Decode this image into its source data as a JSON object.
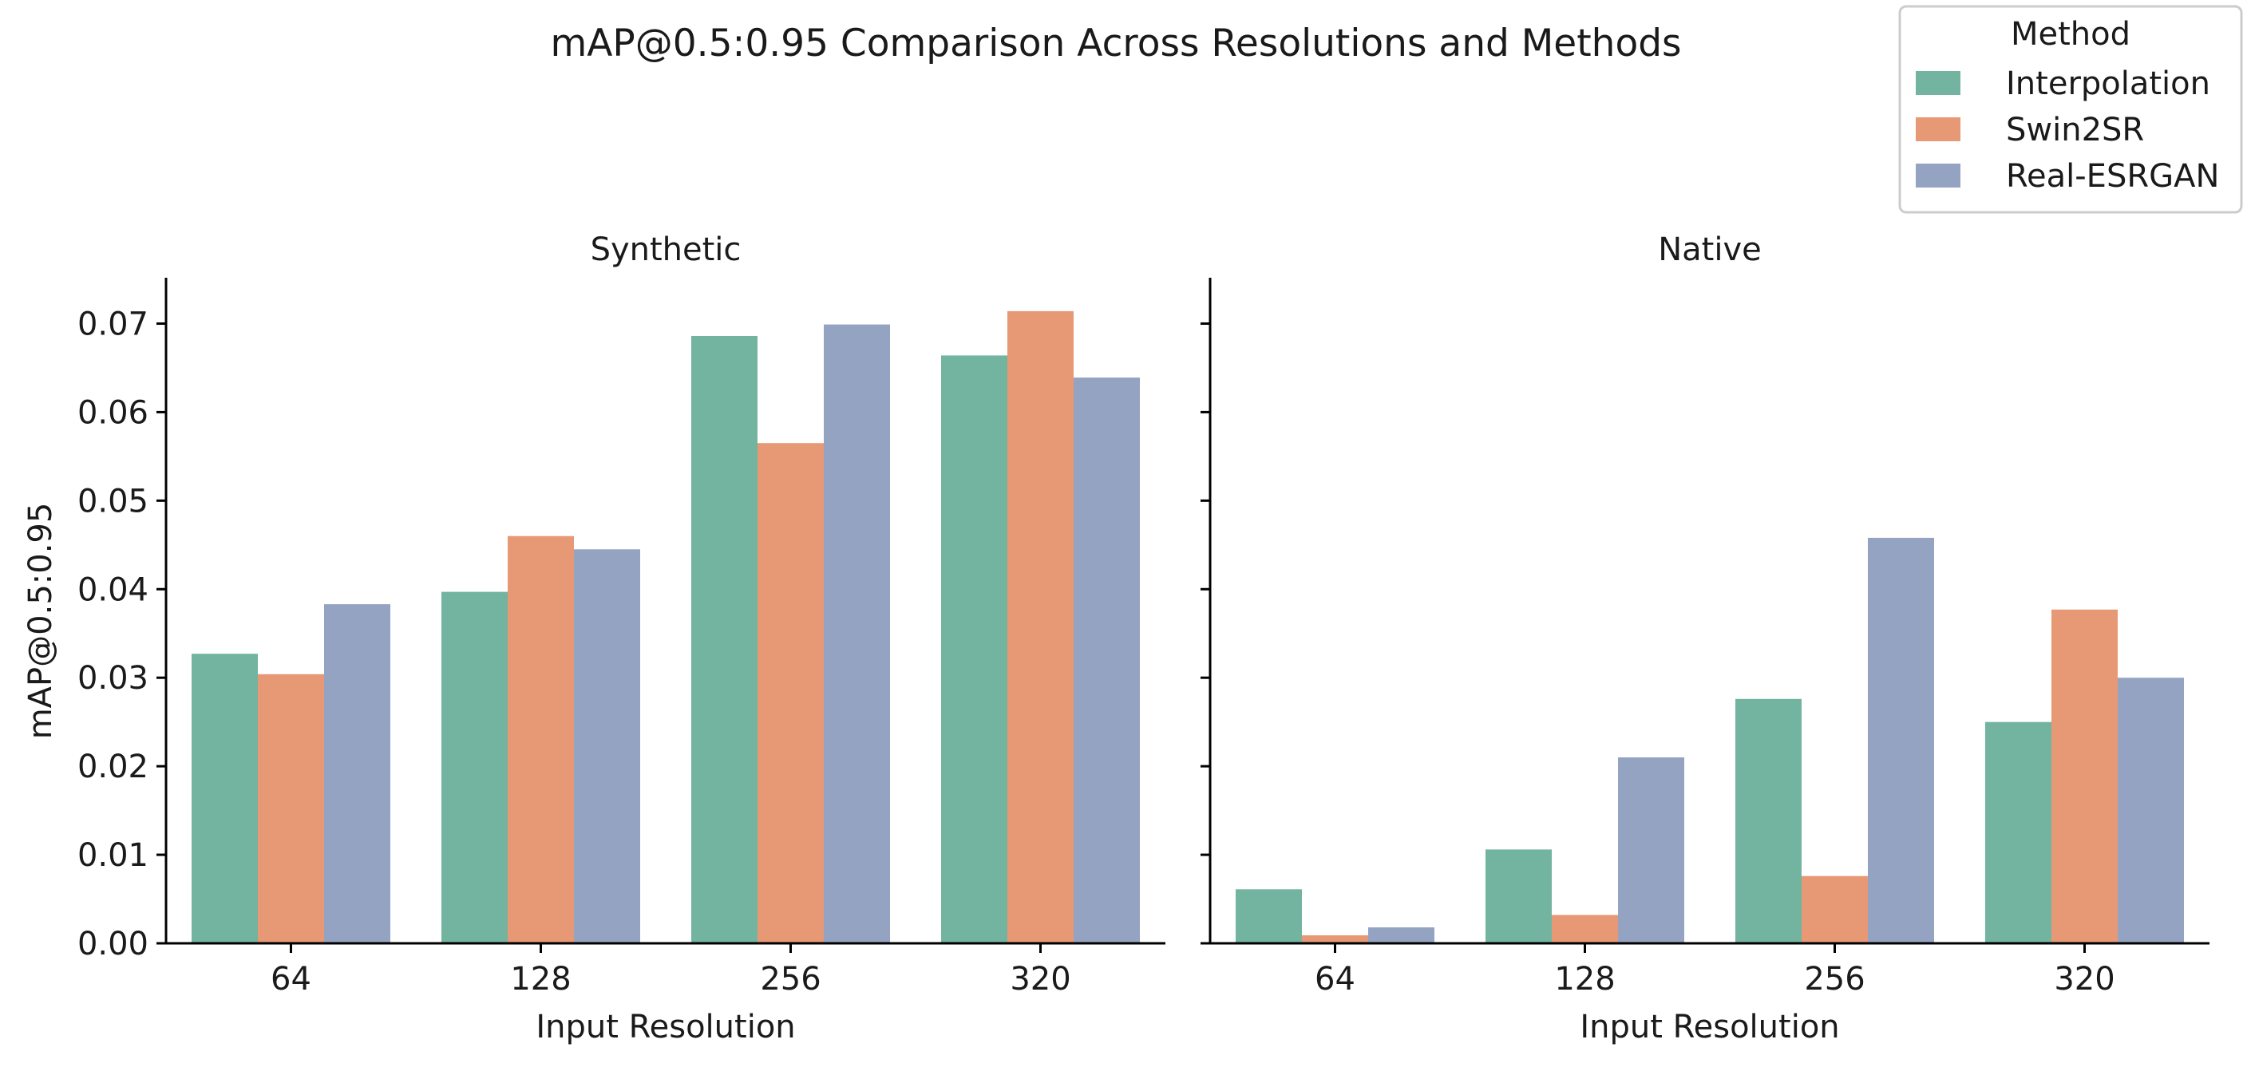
{
  "chart_data": {
    "type": "bar",
    "title": "mAP@0.5:0.95 Comparison Across Resolutions and Methods",
    "ylabel": "mAP@0.5:0.95",
    "ylim": [
      0,
      0.075
    ],
    "yticks": [
      "0.00",
      "0.01",
      "0.02",
      "0.03",
      "0.04",
      "0.05",
      "0.06",
      "0.07"
    ],
    "grid": false,
    "legend": {
      "title": "Method",
      "placement": "top-right",
      "entries": [
        "Interpolation",
        "Swin2SR",
        "Real-ESRGAN"
      ]
    },
    "colors": {
      "Interpolation": "#73b4a0",
      "Swin2SR": "#e79874",
      "Real-ESRGAN": "#95a3c3"
    },
    "panels": [
      {
        "title": "Synthetic",
        "xlabel": "Input Resolution",
        "categories": [
          "64",
          "128",
          "256",
          "320"
        ],
        "series": [
          {
            "name": "Interpolation",
            "values": [
              0.0327,
              0.0397,
              0.0686,
              0.0664
            ]
          },
          {
            "name": "Swin2SR",
            "values": [
              0.0304,
              0.046,
              0.0565,
              0.0714
            ]
          },
          {
            "name": "Real-ESRGAN",
            "values": [
              0.0383,
              0.0445,
              0.0699,
              0.0639
            ]
          }
        ]
      },
      {
        "title": "Native",
        "xlabel": "Input Resolution",
        "categories": [
          "64",
          "128",
          "256",
          "320"
        ],
        "series": [
          {
            "name": "Interpolation",
            "values": [
              0.0061,
              0.0106,
              0.0276,
              0.025
            ]
          },
          {
            "name": "Swin2SR",
            "values": [
              0.0009,
              0.0032,
              0.0076,
              0.0377
            ]
          },
          {
            "name": "Real-ESRGAN",
            "values": [
              0.0018,
              0.021,
              0.0458,
              0.03
            ]
          }
        ]
      }
    ]
  }
}
